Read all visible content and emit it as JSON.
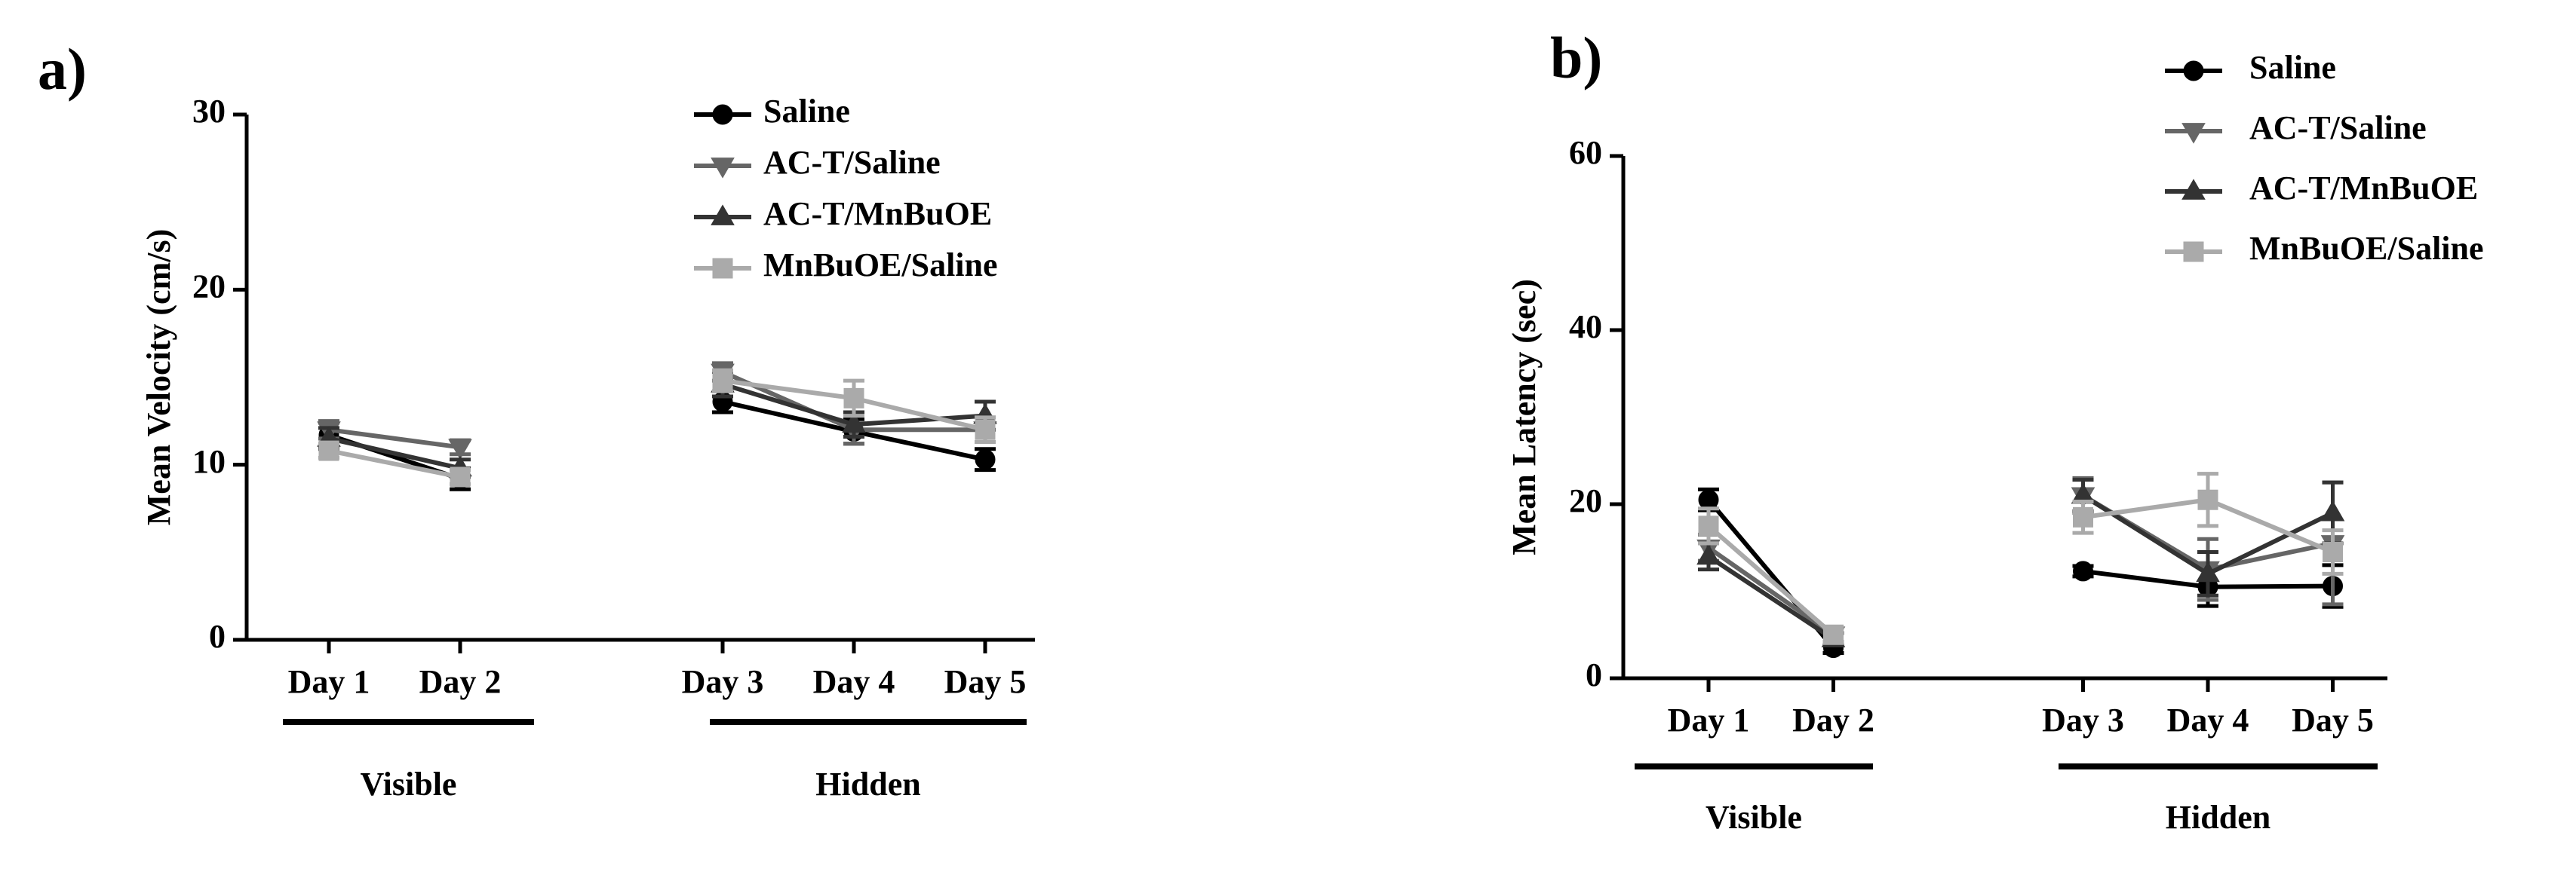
{
  "chart_data": [
    {
      "type": "line",
      "panel_label": "a)",
      "y_label": "Mean Velocity (cm/s)",
      "categories": [
        "Day 1",
        "Day 2",
        null,
        "Day 3",
        "Day 4",
        "Day 5"
      ],
      "groups": [
        "Visible",
        "Hidden"
      ],
      "ylim": [
        0,
        30
      ],
      "yticks": [
        0,
        10,
        20,
        30
      ],
      "series": [
        {
          "name": "Saline",
          "color": "#000000",
          "marker": "circle",
          "values": [
            11.7,
            9.2,
            null,
            13.6,
            11.9,
            10.3
          ],
          "errors": [
            0.7,
            0.6,
            null,
            0.6,
            0.7,
            0.6
          ]
        },
        {
          "name": "AC-T/Saline",
          "color": "#666666",
          "marker": "triangle-down",
          "values": [
            12.0,
            11.0,
            null,
            15.3,
            12.0,
            12.0
          ],
          "errors": [
            0.5,
            0.4,
            null,
            0.5,
            0.8,
            0.7
          ]
        },
        {
          "name": "AC-T/MnBuOE",
          "color": "#333333",
          "marker": "triangle-up",
          "values": [
            11.5,
            9.8,
            null,
            14.6,
            12.3,
            12.8
          ],
          "errors": [
            0.6,
            0.5,
            null,
            0.7,
            0.7,
            0.8
          ]
        },
        {
          "name": "MnBuOE/Saline",
          "color": "#aaaaaa",
          "marker": "square",
          "values": [
            10.8,
            9.3,
            null,
            14.8,
            13.8,
            12.0
          ],
          "errors": [
            0.4,
            0.4,
            null,
            0.6,
            1.0,
            0.7
          ]
        }
      ]
    },
    {
      "type": "line",
      "panel_label": "b)",
      "y_label": "Mean Latency (sec)",
      "categories": [
        "Day 1",
        "Day 2",
        null,
        "Day 3",
        "Day 4",
        "Day 5"
      ],
      "groups": [
        "Visible",
        "Hidden"
      ],
      "ylim": [
        0,
        60
      ],
      "yticks": [
        0,
        20,
        40,
        60
      ],
      "series": [
        {
          "name": "Saline",
          "color": "#000000",
          "marker": "circle",
          "values": [
            20.5,
            3.5,
            null,
            12.3,
            10.5,
            10.6
          ],
          "errors": [
            1.2,
            0.6,
            null,
            0.6,
            2.2,
            2.4
          ]
        },
        {
          "name": "AC-T/Saline",
          "color": "#666666",
          "marker": "triangle-down",
          "values": [
            15.0,
            5.0,
            null,
            21.0,
            12.5,
            15.5
          ],
          "errors": [
            1.5,
            0.8,
            null,
            2.0,
            3.5,
            7.0
          ]
        },
        {
          "name": "AC-T/MnBuOE",
          "color": "#333333",
          "marker": "triangle-up",
          "values": [
            14.0,
            4.5,
            null,
            21.0,
            12.0,
            19.0
          ],
          "errors": [
            1.5,
            0.7,
            null,
            1.8,
            2.5,
            3.5
          ]
        },
        {
          "name": "MnBuOE/Saline",
          "color": "#aaaaaa",
          "marker": "square",
          "values": [
            17.5,
            5.0,
            null,
            18.5,
            20.5,
            14.5
          ],
          "errors": [
            2.0,
            0.8,
            null,
            1.8,
            3.0,
            2.5
          ]
        }
      ]
    }
  ]
}
